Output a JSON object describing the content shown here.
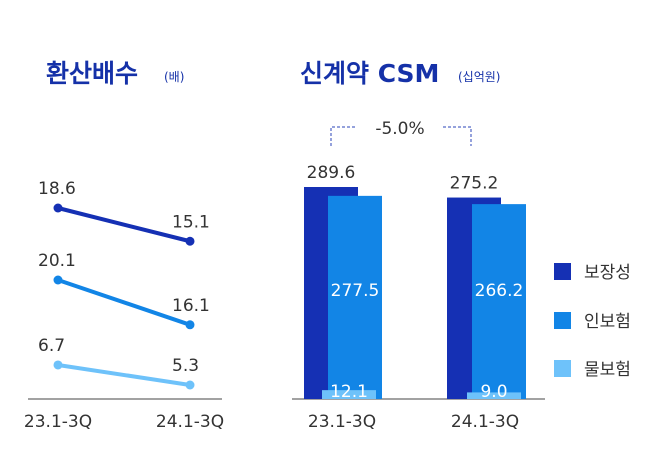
{
  "colors": {
    "dark_blue": "#1530b4",
    "mid_blue": "#1285e6",
    "light_blue": "#6ec2fa",
    "title_blue": "#1531a8",
    "axis": "#444444",
    "guide": "#2b44b8"
  },
  "chart_data": [
    {
      "type": "line",
      "title": "환산배수",
      "unit": "(배)",
      "categories": [
        "23.1-3Q",
        "24.1-3Q"
      ],
      "series": [
        {
          "name": "보장성",
          "values": [
            18.6,
            15.1
          ]
        },
        {
          "name": "인보험",
          "values": [
            20.1,
            16.1
          ]
        },
        {
          "name": "물보험",
          "values": [
            6.7,
            5.3
          ]
        }
      ]
    },
    {
      "type": "bar",
      "title": "신계약 CSM",
      "unit": "(십억원)",
      "categories": [
        "23.1-3Q",
        "24.1-3Q"
      ],
      "series": [
        {
          "name": "보장성",
          "values": [
            289.6,
            275.2
          ]
        },
        {
          "name": "인보험",
          "values": [
            277.5,
            266.2
          ]
        },
        {
          "name": "물보험",
          "values": [
            12.1,
            9.0
          ]
        }
      ],
      "change_label": "-5.0%",
      "legend": [
        "보장성",
        "인보험",
        "물보험"
      ],
      "legend_position": "right"
    }
  ]
}
